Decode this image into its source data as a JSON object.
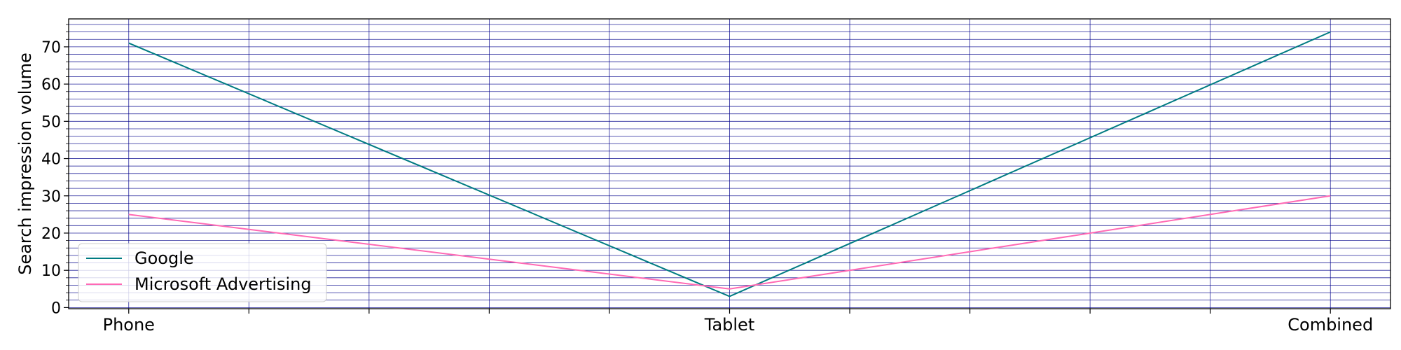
{
  "chart_data": {
    "type": "line",
    "title": "",
    "xlabel": "",
    "ylabel": "Search impression volume",
    "categories": [
      "Phone",
      "Tablet",
      "Combined"
    ],
    "x_ticks": [
      0,
      0.2,
      0.4,
      0.6,
      0.8,
      1,
      1.2,
      1.4,
      1.6,
      1.8,
      2
    ],
    "ylim": [
      -0.3,
      77.5
    ],
    "y_ticks": [
      0,
      10,
      20,
      30,
      40,
      50,
      60,
      70
    ],
    "y_minor_step": 2,
    "grid": true,
    "legend_position": "lower-left",
    "series": [
      {
        "name": "Google",
        "color": "#007b82",
        "values": [
          71,
          3,
          74
        ]
      },
      {
        "name": "Microsoft Advertising",
        "color": "#ff69b4",
        "values": [
          25,
          5,
          30
        ]
      }
    ],
    "colors": {
      "grid": "#00008b"
    }
  }
}
